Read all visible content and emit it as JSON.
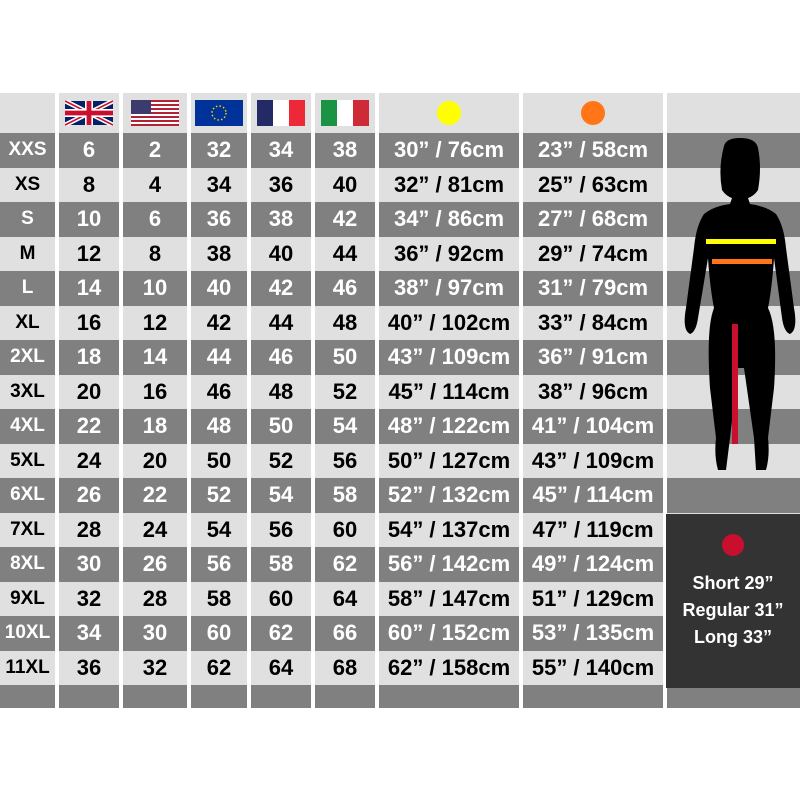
{
  "colors": {
    "dark_row": "#808080",
    "light_row": "#e0e0e0",
    "waist_marker": "#ffff00",
    "hip_marker": "#ff7518",
    "inseam_marker": "#c8102e",
    "panel": "#333333"
  },
  "header": {
    "flags": [
      "uk-flag",
      "us-flag",
      "eu-flag",
      "france-flag",
      "italy-flag"
    ],
    "waist_icon": "yellow-dot",
    "hip_icon": "orange-dot"
  },
  "rows": [
    {
      "size": "XXS",
      "uk": "6",
      "us": "2",
      "eu": "32",
      "fr": "34",
      "it": "38",
      "waist": "30” / 76cm",
      "hip": "23” / 58cm"
    },
    {
      "size": "XS",
      "uk": "8",
      "us": "4",
      "eu": "34",
      "fr": "36",
      "it": "40",
      "waist": "32” / 81cm",
      "hip": "25” / 63cm"
    },
    {
      "size": "S",
      "uk": "10",
      "us": "6",
      "eu": "36",
      "fr": "38",
      "it": "42",
      "waist": "34” / 86cm",
      "hip": "27” / 68cm"
    },
    {
      "size": "M",
      "uk": "12",
      "us": "8",
      "eu": "38",
      "fr": "40",
      "it": "44",
      "waist": "36” / 92cm",
      "hip": "29” / 74cm"
    },
    {
      "size": "L",
      "uk": "14",
      "us": "10",
      "eu": "40",
      "fr": "42",
      "it": "46",
      "waist": "38” / 97cm",
      "hip": "31” / 79cm"
    },
    {
      "size": "XL",
      "uk": "16",
      "us": "12",
      "eu": "42",
      "fr": "44",
      "it": "48",
      "waist": "40” / 102cm",
      "hip": "33” / 84cm"
    },
    {
      "size": "2XL",
      "uk": "18",
      "us": "14",
      "eu": "44",
      "fr": "46",
      "it": "50",
      "waist": "43” / 109cm",
      "hip": "36” / 91cm"
    },
    {
      "size": "3XL",
      "uk": "20",
      "us": "16",
      "eu": "46",
      "fr": "48",
      "it": "52",
      "waist": "45” / 114cm",
      "hip": "38” / 96cm"
    },
    {
      "size": "4XL",
      "uk": "22",
      "us": "18",
      "eu": "48",
      "fr": "50",
      "it": "54",
      "waist": "48” / 122cm",
      "hip": "41” / 104cm"
    },
    {
      "size": "5XL",
      "uk": "24",
      "us": "20",
      "eu": "50",
      "fr": "52",
      "it": "56",
      "waist": "50” / 127cm",
      "hip": "43” / 109cm"
    },
    {
      "size": "6XL",
      "uk": "26",
      "us": "22",
      "eu": "52",
      "fr": "54",
      "it": "58",
      "waist": "52” / 132cm",
      "hip": "45” / 114cm"
    },
    {
      "size": "7XL",
      "uk": "28",
      "us": "24",
      "eu": "54",
      "fr": "56",
      "it": "60",
      "waist": "54” / 137cm",
      "hip": "47” / 119cm"
    },
    {
      "size": "8XL",
      "uk": "30",
      "us": "26",
      "eu": "56",
      "fr": "58",
      "it": "62",
      "waist": "56” / 142cm",
      "hip": "49” / 124cm"
    },
    {
      "size": "9XL",
      "uk": "32",
      "us": "28",
      "eu": "58",
      "fr": "60",
      "it": "64",
      "waist": "58” / 147cm",
      "hip": "51” / 129cm"
    },
    {
      "size": "10XL",
      "uk": "34",
      "us": "30",
      "eu": "60",
      "fr": "62",
      "it": "66",
      "waist": "60” / 152cm",
      "hip": "53” / 135cm"
    },
    {
      "size": "11XL",
      "uk": "36",
      "us": "32",
      "eu": "62",
      "fr": "64",
      "it": "68",
      "waist": "62” / 158cm",
      "hip": "55” / 140cm"
    }
  ],
  "inseam": {
    "icon": "red-dot",
    "lines": [
      "Short 29”",
      "Regular 31”",
      "Long 33”"
    ]
  }
}
